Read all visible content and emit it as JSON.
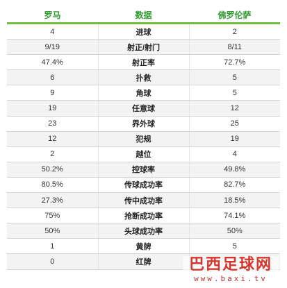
{
  "header": {
    "home_team": "罗马",
    "stat_label": "数据",
    "away_team": "佛罗伦萨"
  },
  "rows": [
    {
      "home": "4",
      "stat": "进球",
      "away": "2"
    },
    {
      "home": "9/19",
      "stat": "射正/射门",
      "away": "8/11"
    },
    {
      "home": "47.4%",
      "stat": "射正率",
      "away": "72.7%"
    },
    {
      "home": "6",
      "stat": "扑救",
      "away": "5"
    },
    {
      "home": "9",
      "stat": "角球",
      "away": "5"
    },
    {
      "home": "19",
      "stat": "任意球",
      "away": "12"
    },
    {
      "home": "23",
      "stat": "界外球",
      "away": "25"
    },
    {
      "home": "12",
      "stat": "犯规",
      "away": "19"
    },
    {
      "home": "2",
      "stat": "越位",
      "away": "4"
    },
    {
      "home": "50.2%",
      "stat": "控球率",
      "away": "49.8%"
    },
    {
      "home": "80.5%",
      "stat": "传球成功率",
      "away": "82.7%"
    },
    {
      "home": "27.3%",
      "stat": "传中成功率",
      "away": "18.5%"
    },
    {
      "home": "75%",
      "stat": "抢断成功率",
      "away": "74.1%"
    },
    {
      "home": "50%",
      "stat": "头球成功率",
      "away": "50%"
    },
    {
      "home": "1",
      "stat": "黄牌",
      "away": "5"
    },
    {
      "home": "0",
      "stat": "红牌",
      "away": ""
    }
  ],
  "watermark": {
    "name": "巴西足球网",
    "url": "www.baxi.tv"
  },
  "colors": {
    "header_text": "#2e9c2e",
    "header_rule": "#6fbf3f",
    "stripe": "#f3f3f3",
    "watermark": "#d9342b"
  }
}
